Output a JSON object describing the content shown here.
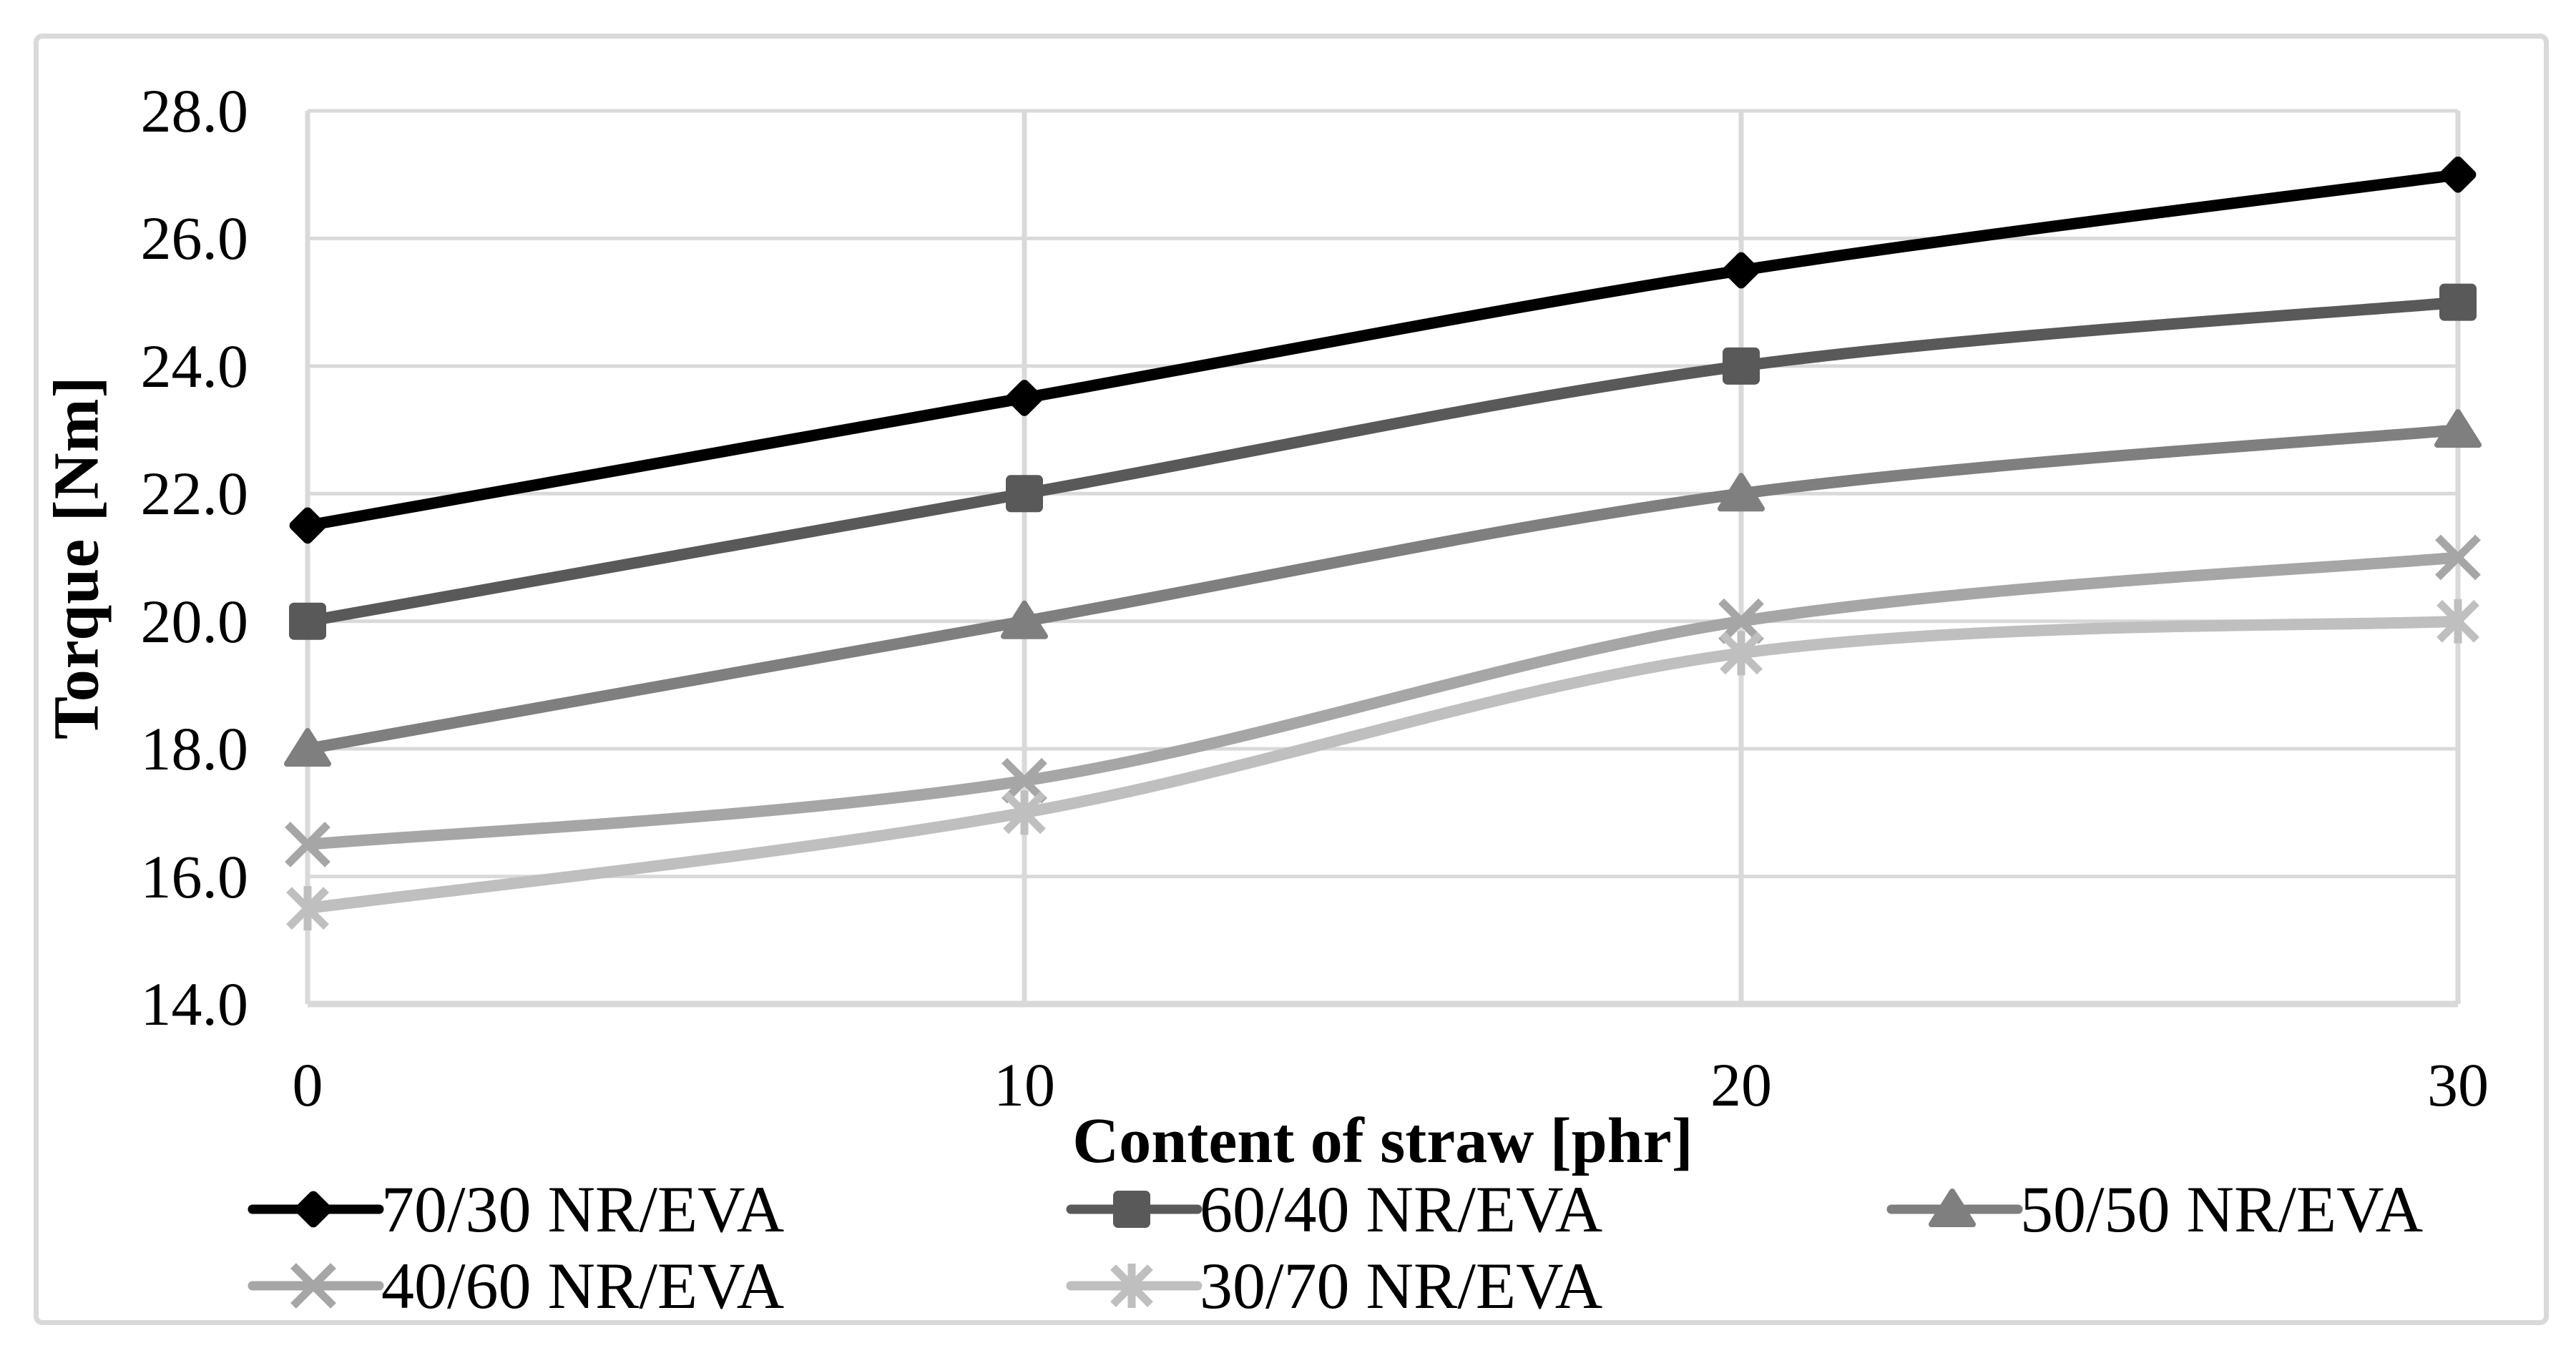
{
  "figure": {
    "background": "#ffffff",
    "border_color": "#d9d9d9"
  },
  "chart_data": {
    "type": "line",
    "title": "",
    "xlabel": "Content of straw [phr]",
    "ylabel": "Torque [Nm]",
    "x": [
      0,
      10,
      20,
      30
    ],
    "xtick_labels": [
      "0",
      "10",
      "20",
      "30"
    ],
    "ylim": [
      14.0,
      28.0
    ],
    "yticks": [
      14.0,
      16.0,
      18.0,
      20.0,
      22.0,
      24.0,
      26.0,
      28.0
    ],
    "ytick_labels": [
      "14.0",
      "16.0",
      "18.0",
      "20.0",
      "22.0",
      "24.0",
      "26.0",
      "28.0"
    ],
    "grid": true,
    "gridline_color": "#d9d9d9",
    "axis_line_color": "#d9d9d9",
    "legend_position": "bottom",
    "series": [
      {
        "name": "70/30 NR/EVA",
        "marker": "diamond",
        "color": "#000000",
        "values": [
          21.5,
          23.5,
          25.5,
          27.0
        ]
      },
      {
        "name": "60/40 NR/EVA",
        "marker": "square",
        "color": "#595959",
        "values": [
          20.0,
          22.0,
          24.0,
          25.0
        ]
      },
      {
        "name": "50/50 NR/EVA",
        "marker": "triangle",
        "color": "#7f7f7f",
        "values": [
          18.0,
          20.0,
          22.0,
          23.0
        ]
      },
      {
        "name": "40/60 NR/EVA",
        "marker": "x",
        "color": "#a6a6a6",
        "values": [
          16.5,
          17.5,
          20.0,
          21.0
        ]
      },
      {
        "name": "30/70 NR/EVA",
        "marker": "asterisk",
        "color": "#bfbfbf",
        "values": [
          15.5,
          17.0,
          19.5,
          20.0
        ]
      }
    ]
  }
}
